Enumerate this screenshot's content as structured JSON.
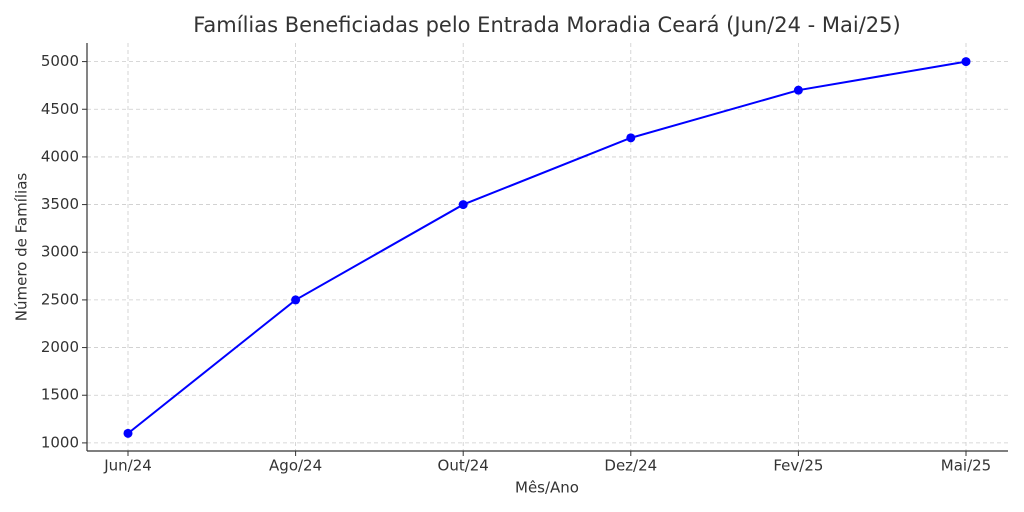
{
  "chart_data": {
    "type": "line",
    "title": "Famílias Beneficiadas pelo Entrada Moradia Ceará (Jun/24 - Mai/25)",
    "x_label": "Mês/Ano",
    "y_label": "Número de Famílias",
    "categories": [
      "Jun/24",
      "Ago/24",
      "Out/24",
      "Dez/24",
      "Fev/25",
      "Mai/25"
    ],
    "series": [
      {
        "name": "Famílias",
        "color": "#0000ff",
        "values": [
          1100,
          2500,
          3500,
          4200,
          4700,
          5000
        ]
      }
    ],
    "ylim": [
      915,
      5195
    ],
    "yticks": [
      1000,
      1500,
      2000,
      2500,
      3000,
      3500,
      4000,
      4500,
      5000
    ],
    "grid": true
  }
}
